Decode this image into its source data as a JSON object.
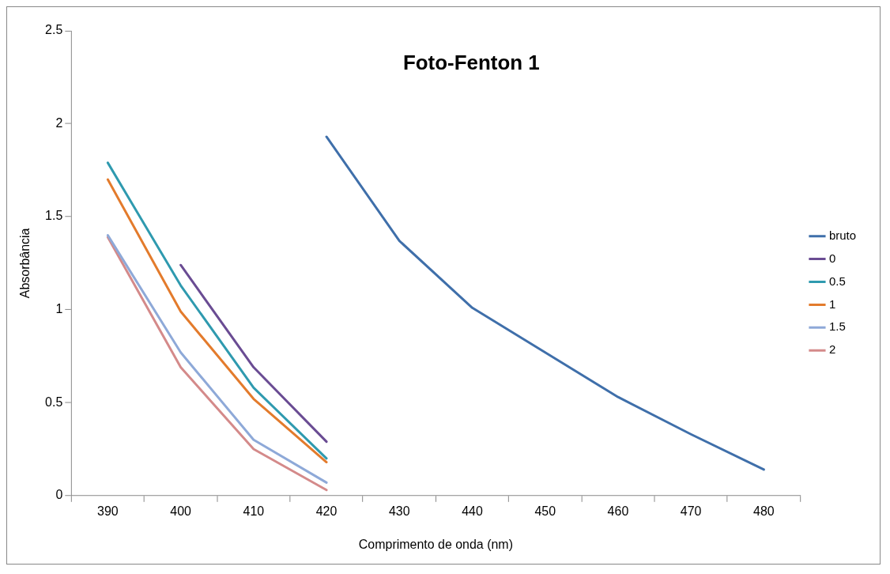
{
  "chart_data": {
    "type": "line",
    "title": "Foto-Fenton 1",
    "xlabel": "Comprimento de onda (nm)",
    "ylabel": "Absorbância",
    "categories": [
      "390",
      "400",
      "410",
      "420",
      "430",
      "440",
      "450",
      "460",
      "470",
      "480"
    ],
    "series": [
      {
        "name": "bruto",
        "color": "#3f6faa",
        "values": [
          null,
          null,
          null,
          1.93,
          1.37,
          1.01,
          0.77,
          0.53,
          0.33,
          0.14
        ]
      },
      {
        "name": "0",
        "color": "#6a4c93",
        "values": [
          null,
          1.24,
          0.69,
          0.29,
          null,
          null,
          null,
          null,
          null,
          null
        ]
      },
      {
        "name": "0.5",
        "color": "#2f9aaf",
        "values": [
          1.79,
          1.13,
          0.58,
          0.2,
          null,
          null,
          null,
          null,
          null,
          null
        ]
      },
      {
        "name": "1",
        "color": "#e37b2c",
        "values": [
          1.7,
          0.99,
          0.52,
          0.18,
          null,
          null,
          null,
          null,
          null,
          null
        ]
      },
      {
        "name": "1.5",
        "color": "#8ea9d8",
        "values": [
          1.4,
          0.77,
          0.3,
          0.07,
          null,
          null,
          null,
          null,
          null,
          null
        ]
      },
      {
        "name": "2",
        "color": "#d48a8a",
        "values": [
          1.39,
          0.69,
          0.25,
          0.03,
          null,
          null,
          null,
          null,
          null,
          null
        ]
      }
    ],
    "ylim": [
      0,
      2.5
    ],
    "yticks": [
      0,
      0.5,
      1,
      1.5,
      2,
      2.5
    ],
    "grid": false,
    "legend": "right",
    "marker": "none",
    "line_style": "solid"
  }
}
